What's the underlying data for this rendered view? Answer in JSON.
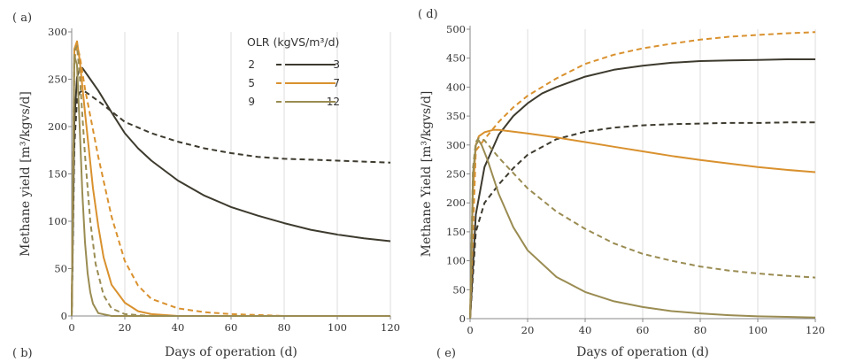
{
  "panel_labels": {
    "a": "( a)",
    "b": "( b)",
    "d": "( d)",
    "e": "( e)"
  },
  "legend": {
    "title": "OLR (kgVS/m³/d)",
    "entries": [
      "2",
      "3",
      "5",
      "7",
      "9",
      "12"
    ]
  },
  "colors": {
    "dark": "#3d3a2e",
    "orange": "#d9912e",
    "olive": "#9a8c52",
    "axis": "#888888",
    "grid": "#dddddd"
  },
  "chart_data": [
    {
      "type": "line",
      "id": "left",
      "title": "",
      "xlabel": "Days of operation (d)",
      "ylabel": "Methane yield [m³/kgvs/d]",
      "xlim": [
        0,
        120
      ],
      "ylim": [
        0,
        300
      ],
      "xticks": [
        0,
        20,
        40,
        60,
        80,
        100,
        120
      ],
      "yticks": [
        0,
        50,
        100,
        150,
        200,
        250,
        300
      ],
      "grid": "vertical",
      "series": [
        {
          "name": "2",
          "color": "dark",
          "dash": true,
          "x": [
            0,
            1,
            2,
            3,
            4,
            5,
            7,
            10,
            15,
            20,
            30,
            40,
            50,
            60,
            70,
            80,
            90,
            100,
            110,
            120
          ],
          "y": [
            0,
            180,
            228,
            236,
            238,
            237,
            233,
            227,
            216,
            205,
            193,
            184,
            177,
            172,
            168,
            166,
            165,
            164,
            163,
            162
          ]
        },
        {
          "name": "3",
          "color": "dark",
          "dash": false,
          "x": [
            0,
            1,
            2,
            3,
            4,
            5,
            7,
            10,
            15,
            20,
            25,
            30,
            40,
            50,
            60,
            70,
            80,
            90,
            100,
            110,
            120
          ],
          "y": [
            0,
            205,
            252,
            261,
            262,
            258,
            250,
            238,
            215,
            193,
            177,
            164,
            143,
            127,
            115,
            106,
            98,
            91,
            86,
            82,
            79
          ]
        },
        {
          "name": "5",
          "color": "orange",
          "dash": true,
          "x": [
            0,
            1,
            2,
            3,
            5,
            10,
            15,
            20,
            25,
            30,
            40,
            50,
            60,
            70,
            80,
            120
          ],
          "y": [
            0,
            270,
            285,
            275,
            240,
            168,
            105,
            58,
            32,
            18,
            8,
            4,
            2,
            1,
            0,
            0
          ]
        },
        {
          "name": "7",
          "color": "orange",
          "dash": false,
          "x": [
            0,
            1,
            2,
            3,
            5,
            8,
            10,
            12,
            15,
            20,
            25,
            30,
            40,
            50,
            120
          ],
          "y": [
            0,
            282,
            290,
            270,
            215,
            135,
            95,
            62,
            33,
            14,
            5,
            2,
            0,
            0,
            0
          ]
        },
        {
          "name": "9",
          "color": "olive",
          "dash": true,
          "x": [
            0,
            1,
            2,
            3,
            5,
            7,
            9,
            12,
            15,
            20,
            30,
            120
          ],
          "y": [
            0,
            280,
            285,
            255,
            170,
            100,
            55,
            22,
            8,
            2,
            0,
            0
          ]
        },
        {
          "name": "12",
          "color": "olive",
          "dash": false,
          "x": [
            0,
            1,
            2,
            3,
            4,
            5,
            6,
            7,
            8,
            10,
            15,
            120
          ],
          "y": [
            0,
            275,
            265,
            200,
            130,
            78,
            45,
            25,
            13,
            3,
            0,
            0
          ]
        }
      ]
    },
    {
      "type": "line",
      "id": "right",
      "title": "",
      "xlabel": "Days of operation (d)",
      "ylabel": "Methane Yield [m³/kgvs/d]",
      "xlim": [
        0,
        120
      ],
      "ylim": [
        0,
        500
      ],
      "xticks": [
        0,
        20,
        40,
        60,
        80,
        100,
        120
      ],
      "yticks": [
        0,
        50,
        100,
        150,
        200,
        250,
        300,
        350,
        400,
        450,
        500
      ],
      "grid": "vertical",
      "series": [
        {
          "name": "2",
          "color": "dark",
          "dash": true,
          "x": [
            0,
            2,
            5,
            10,
            15,
            20,
            30,
            40,
            50,
            60,
            70,
            80,
            90,
            100,
            110,
            120
          ],
          "y": [
            0,
            150,
            200,
            232,
            260,
            283,
            310,
            323,
            330,
            334,
            336,
            337,
            338,
            338,
            339,
            339
          ]
        },
        {
          "name": "3",
          "color": "dark",
          "dash": false,
          "x": [
            0,
            2,
            5,
            10,
            15,
            20,
            25,
            30,
            40,
            50,
            60,
            70,
            80,
            90,
            100,
            110,
            120
          ],
          "y": [
            0,
            180,
            262,
            318,
            350,
            372,
            389,
            400,
            418,
            430,
            437,
            442,
            445,
            446,
            447,
            448,
            448
          ]
        },
        {
          "name": "5",
          "color": "orange",
          "dash": true,
          "x": [
            0,
            2,
            5,
            10,
            15,
            20,
            30,
            40,
            50,
            60,
            70,
            80,
            90,
            100,
            110,
            120
          ],
          "y": [
            0,
            290,
            310,
            340,
            365,
            385,
            415,
            440,
            456,
            467,
            475,
            482,
            487,
            490,
            493,
            495
          ]
        },
        {
          "name": "7",
          "color": "orange",
          "dash": false,
          "x": [
            0,
            1,
            2,
            3,
            5,
            8,
            10,
            20,
            30,
            40,
            50,
            60,
            70,
            80,
            90,
            100,
            110,
            120
          ],
          "y": [
            0,
            220,
            300,
            315,
            322,
            326,
            326,
            320,
            313,
            305,
            297,
            289,
            281,
            274,
            268,
            262,
            257,
            253
          ]
        },
        {
          "name": "9",
          "color": "olive",
          "dash": true,
          "x": [
            0,
            1,
            2,
            3,
            5,
            8,
            10,
            20,
            30,
            40,
            50,
            60,
            70,
            80,
            90,
            100,
            110,
            120
          ],
          "y": [
            0,
            260,
            305,
            312,
            308,
            290,
            278,
            225,
            185,
            155,
            130,
            112,
            100,
            90,
            83,
            78,
            74,
            71
          ]
        },
        {
          "name": "12",
          "color": "olive",
          "dash": false,
          "x": [
            0,
            1,
            2,
            3,
            4,
            6,
            8,
            10,
            15,
            20,
            30,
            40,
            50,
            60,
            70,
            80,
            90,
            100,
            110,
            120
          ],
          "y": [
            0,
            250,
            300,
            308,
            300,
            275,
            245,
            215,
            158,
            118,
            72,
            46,
            30,
            20,
            13,
            9,
            6,
            4,
            3,
            2
          ]
        }
      ]
    }
  ]
}
